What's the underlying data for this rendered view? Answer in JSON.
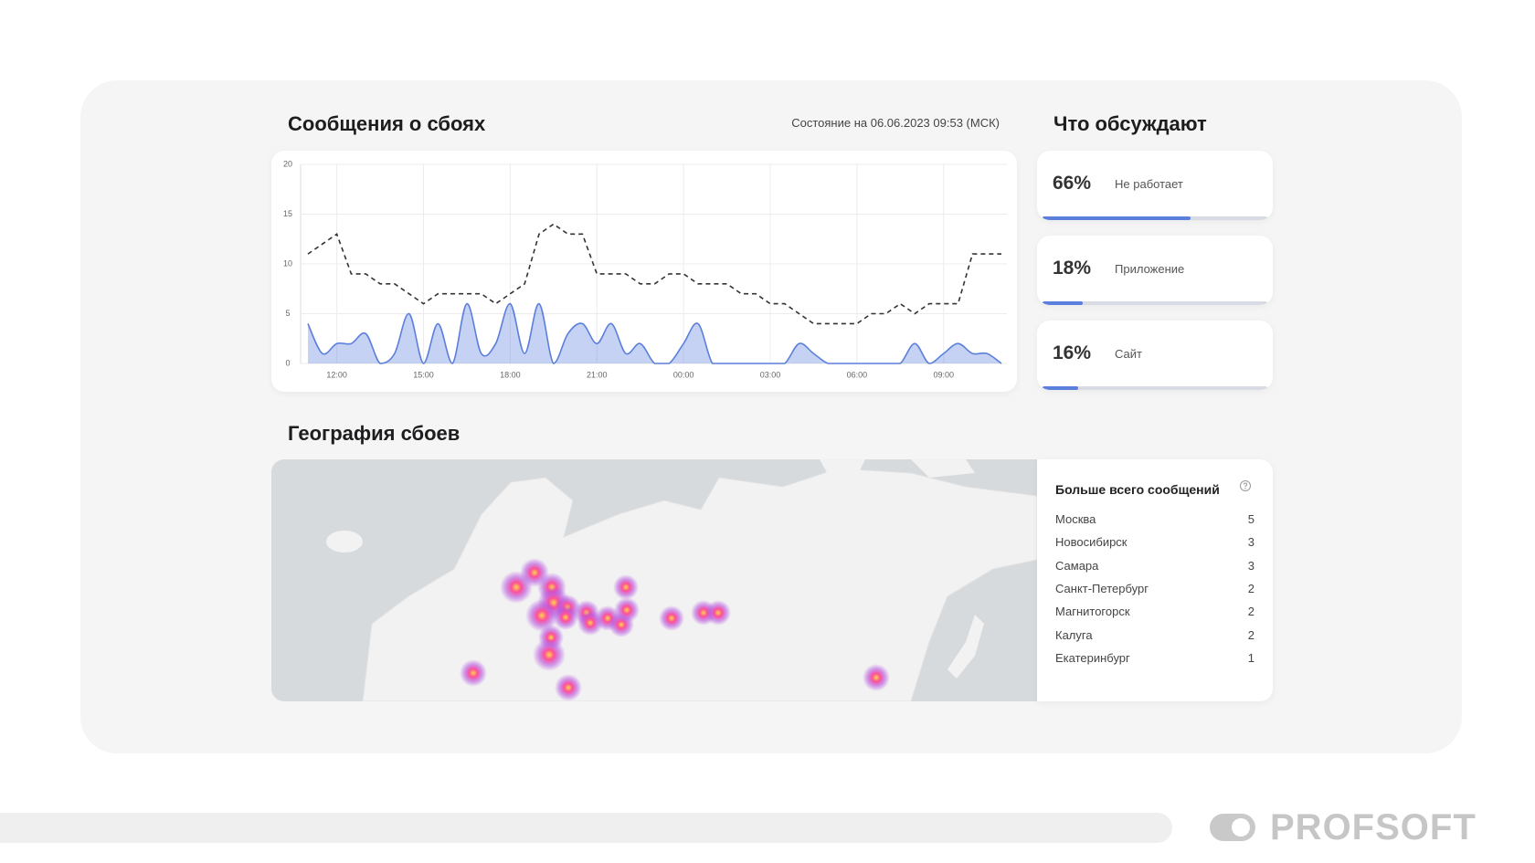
{
  "header": {
    "title": "Сообщения о сбоях",
    "status": "Состояние на 06.06.2023 09:53 (МСК)"
  },
  "chart_data": {
    "type": "line",
    "categories": [
      null,
      null,
      "12:00",
      null,
      null,
      null,
      null,
      null,
      "15:00",
      null,
      null,
      null,
      null,
      null,
      "18:00",
      null,
      null,
      null,
      null,
      null,
      "21:00",
      null,
      null,
      null,
      null,
      null,
      "00:00",
      null,
      null,
      null,
      null,
      null,
      "03:00",
      null,
      null,
      null,
      null,
      null,
      "06:00",
      null,
      null,
      null,
      null,
      null,
      "09:00",
      null,
      null,
      null,
      null
    ],
    "series": [
      {
        "color": "#333333",
        "dash": true,
        "fill": false,
        "values": [
          11,
          12,
          13,
          9,
          9,
          8,
          8,
          7,
          6,
          7,
          7,
          7,
          7,
          6,
          7,
          8,
          13,
          14,
          13,
          13,
          9,
          9,
          9,
          8,
          8,
          9,
          9,
          8,
          8,
          8,
          7,
          7,
          6,
          6,
          5,
          4,
          4,
          4,
          4,
          5,
          5,
          6,
          5,
          6,
          6,
          6,
          11,
          11,
          11
        ]
      },
      {
        "color": "#5b7fdc",
        "dash": false,
        "fill": true,
        "values": [
          4,
          1,
          2,
          2,
          3,
          0,
          1,
          5,
          0,
          4,
          0,
          6,
          1,
          2,
          6,
          1,
          6,
          0,
          3,
          4,
          2,
          4,
          1,
          2,
          0,
          0,
          2,
          4,
          0,
          0,
          0,
          0,
          0,
          0,
          2,
          1,
          0,
          0,
          0,
          0,
          0,
          0,
          2,
          0,
          1,
          2,
          1,
          1,
          0
        ]
      }
    ],
    "ylim": [
      0,
      20
    ],
    "yticks": [
      0,
      5,
      10,
      15,
      20
    ],
    "grid": true
  },
  "topics": {
    "title": "Что обсуждают",
    "items": [
      {
        "value": 66,
        "value_label": "66%",
        "label": "Не работает"
      },
      {
        "value": 18,
        "value_label": "18%",
        "label": "Приложение"
      },
      {
        "value": 16,
        "value_label": "16%",
        "label": "Сайт"
      }
    ]
  },
  "geo": {
    "title": "География сбоев",
    "list_title": "Больше всего сообщений",
    "rows": [
      {
        "city": "Москва",
        "count": 5
      },
      {
        "city": "Новосибирск",
        "count": 3
      },
      {
        "city": "Самара",
        "count": 3
      },
      {
        "city": "Санкт-Петербург",
        "count": 2
      },
      {
        "city": "Магнитогорск",
        "count": 2
      },
      {
        "city": "Калуга",
        "count": 2
      },
      {
        "city": "Екатеринбург",
        "count": 1
      }
    ]
  },
  "brand": "PROFSOFT"
}
